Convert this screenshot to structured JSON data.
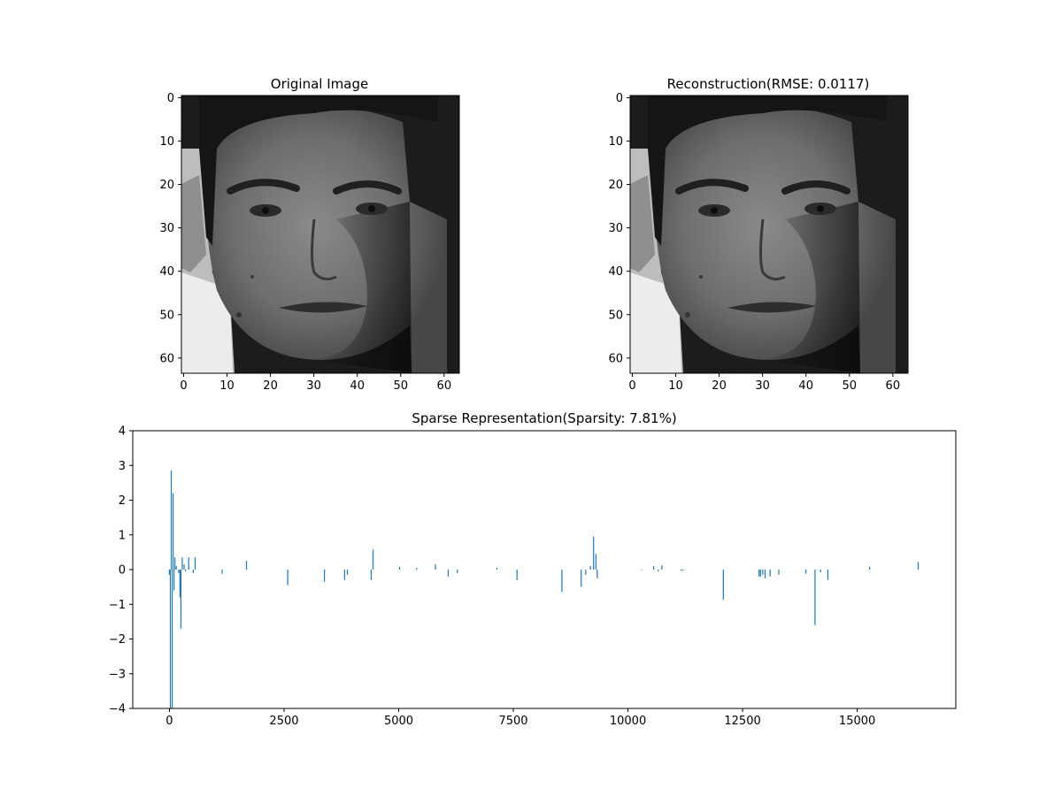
{
  "chart_data": [
    {
      "type": "heatmap",
      "title": "Original Image",
      "xlim": [
        0,
        63
      ],
      "ylim": [
        0,
        63
      ],
      "x_ticks": [
        "0",
        "10",
        "20",
        "30",
        "40",
        "50",
        "60"
      ],
      "y_ticks": [
        "0",
        "10",
        "20",
        "30",
        "40",
        "50",
        "60"
      ],
      "colormap": "gray"
    },
    {
      "type": "heatmap",
      "title": "Reconstruction(RMSE: 0.0117)",
      "xlim": [
        0,
        63
      ],
      "ylim": [
        0,
        63
      ],
      "x_ticks": [
        "0",
        "10",
        "20",
        "30",
        "40",
        "50",
        "60"
      ],
      "y_ticks": [
        "0",
        "10",
        "20",
        "30",
        "40",
        "50",
        "60"
      ],
      "colormap": "gray"
    },
    {
      "type": "bar",
      "title": "Sparse Representation(Sparsity: 7.81%)",
      "xlim": [
        -800,
        17150
      ],
      "ylim": [
        -4,
        4
      ],
      "x_ticks": [
        "0",
        "2500",
        "5000",
        "7500",
        "10000",
        "12500",
        "15000"
      ],
      "y_ticks": [
        "4",
        "3",
        "2",
        "1",
        "0",
        "−1",
        "−2",
        "−3",
        "−4"
      ],
      "bar_color": "#1f77b4",
      "x": [
        0,
        20,
        40,
        60,
        80,
        100,
        120,
        150,
        200,
        230,
        250,
        280,
        320,
        350,
        420,
        520,
        560,
        1150,
        1680,
        2580,
        3380,
        3820,
        3880,
        4400,
        4440,
        5020,
        5390,
        5800,
        6080,
        6280,
        7140,
        7580,
        8560,
        8980,
        9080,
        9180,
        9250,
        9300,
        9330,
        10300,
        10560,
        10660,
        10740,
        11160,
        11200,
        12080,
        12860,
        12890,
        12940,
        12990,
        13100,
        13290,
        13880,
        14080,
        14200,
        14360,
        15270,
        16330
      ],
      "values": [
        -0.15,
        -4.0,
        2.85,
        -4.0,
        2.2,
        -0.6,
        0.35,
        0.1,
        -0.1,
        -0.8,
        -1.7,
        0.35,
        0.15,
        -0.05,
        0.35,
        -0.1,
        0.35,
        -0.12,
        0.25,
        -0.45,
        -0.35,
        -0.3,
        -0.15,
        -0.3,
        0.58,
        0.08,
        0.05,
        0.15,
        -0.2,
        -0.1,
        0.05,
        -0.3,
        -0.65,
        -0.5,
        -0.15,
        0.1,
        0.95,
        0.45,
        -0.25,
        -0.02,
        0.1,
        -0.05,
        0.12,
        -0.04,
        -0.03,
        -0.87,
        -0.2,
        -0.2,
        -0.15,
        -0.25,
        -0.2,
        -0.15,
        -0.12,
        -1.6,
        -0.08,
        -0.3,
        0.08,
        0.22
      ]
    }
  ]
}
